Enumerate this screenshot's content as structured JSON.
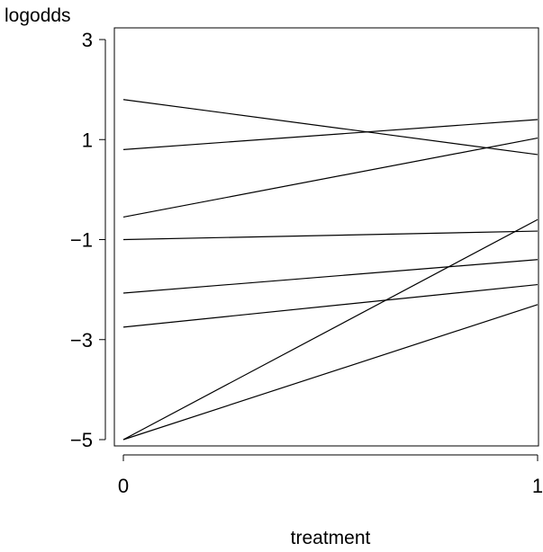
{
  "chart_data": {
    "type": "line",
    "title": "",
    "xlabel": "treatment",
    "ylabel": "logodds",
    "xlim": [
      0,
      1
    ],
    "ylim": [
      -5.05,
      3.2
    ],
    "grid": false,
    "x_ticks": [
      0,
      1
    ],
    "x_tick_labels": [
      "0",
      "1"
    ],
    "y_ticks": [
      3,
      1,
      -1,
      -3,
      -5
    ],
    "y_tick_labels": [
      "3",
      "1",
      "−1",
      "−3",
      "−5"
    ],
    "x": [
      0,
      1
    ],
    "series": [
      {
        "values": [
          1.8,
          0.7
        ]
      },
      {
        "values": [
          0.8,
          1.4
        ]
      },
      {
        "values": [
          -0.55,
          1.03
        ]
      },
      {
        "values": [
          -1.0,
          -0.83
        ]
      },
      {
        "values": [
          -2.07,
          -1.4
        ]
      },
      {
        "values": [
          -2.75,
          -1.9
        ]
      },
      {
        "values": [
          -5.0,
          -0.6
        ]
      },
      {
        "values": [
          -5.0,
          -2.3
        ]
      }
    ]
  }
}
